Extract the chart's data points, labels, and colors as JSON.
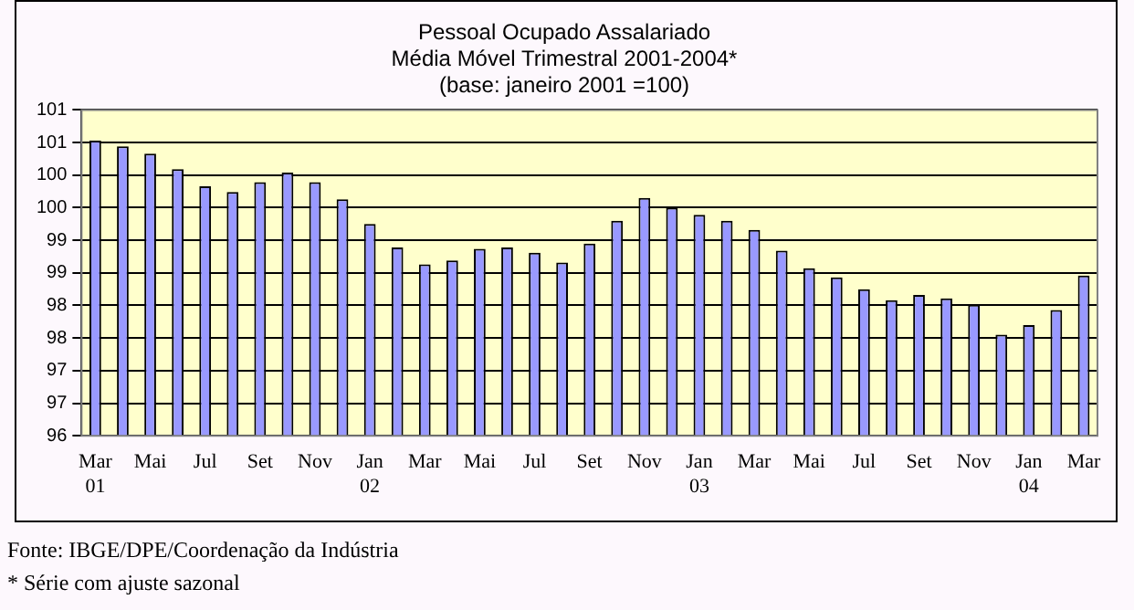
{
  "chart_data": {
    "type": "bar",
    "title": "Pessoal Ocupado Assalariado",
    "subtitle": "Média Móvel Trimestral 2001-2004*\n(base: janeiro 2001 =100)",
    "categories": [
      "Mar\n01",
      null,
      "Mai",
      null,
      "Jul",
      null,
      "Set",
      null,
      "Nov",
      null,
      "Jan\n02",
      null,
      "Mar",
      null,
      "Mai",
      null,
      "Jul",
      null,
      "Set",
      null,
      "Nov",
      null,
      "Jan\n03",
      null,
      "Mar",
      null,
      "Mai",
      null,
      "Jul",
      null,
      "Set",
      null,
      "Nov",
      null,
      "Jan\n04",
      null,
      "Mar"
    ],
    "values": [
      100.53,
      100.44,
      100.33,
      100.09,
      99.83,
      99.74,
      99.89,
      100.04,
      99.89,
      99.63,
      99.25,
      98.89,
      98.63,
      98.69,
      98.87,
      98.89,
      98.81,
      98.66,
      98.95,
      99.3,
      99.65,
      99.5,
      99.39,
      99.3,
      99.16,
      98.84,
      98.57,
      98.43,
      98.25,
      98.08,
      98.16,
      98.11,
      98.01,
      97.55,
      97.7,
      97.93,
      98.46
    ],
    "color": "#9999ff",
    "ylim": [
      96,
      101
    ],
    "yticks": [
      96,
      {
        "value": 96.5,
        "label": "97"
      },
      97,
      {
        "value": 97.5,
        "label": "98"
      },
      98,
      {
        "value": 98.5,
        "label": "99"
      },
      99,
      {
        "value": 99.5,
        "label": "100"
      },
      100,
      {
        "value": 100.5,
        "label": "101"
      },
      101
    ],
    "grid": "y",
    "legend": false,
    "annotations": [
      "Fonte: IBGE/DPE/Coordenação da Indústria",
      "* Série com ajuste sazonal"
    ]
  }
}
